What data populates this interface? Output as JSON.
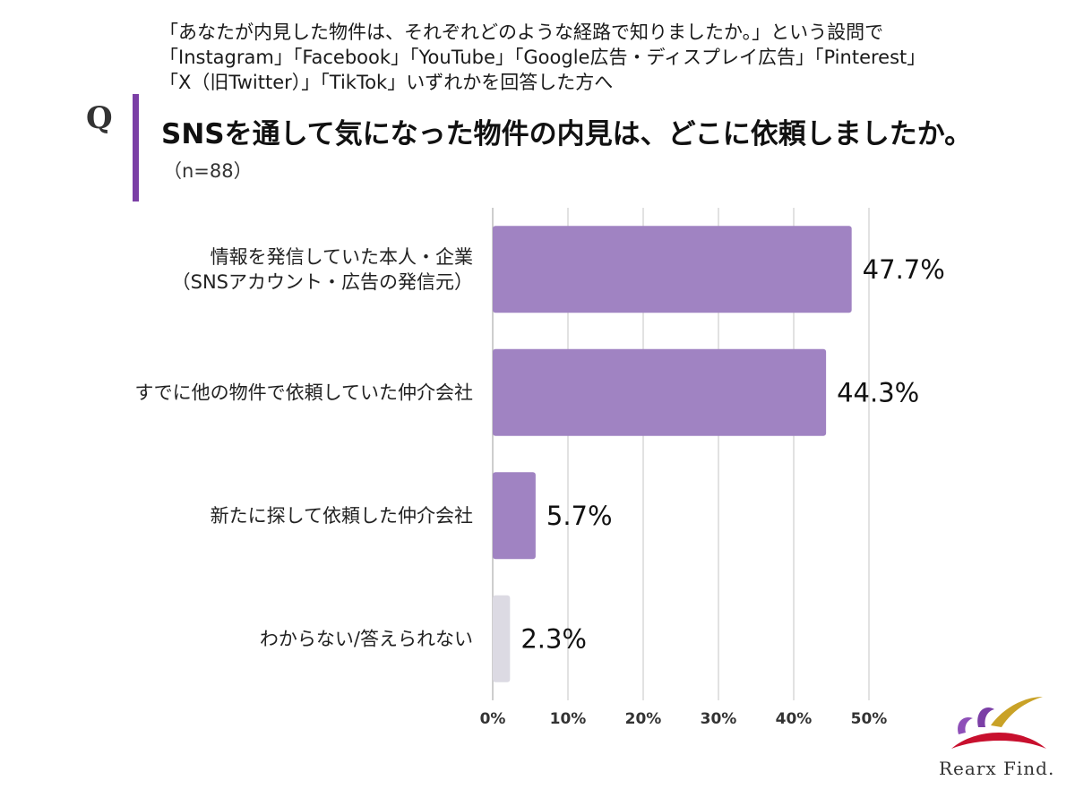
{
  "header": {
    "preamble_lines": [
      "「あなたが内見した物件は、それぞれどのような経路で知りましたか。」という設問で",
      "「Instagram」「Facebook」「YouTube」「Google広告・ディスプレイ広告」「Pinterest」",
      "「X（旧Twitter）」「TikTok」いずれかを回答した方へ"
    ],
    "q_marker": "Q",
    "question": "SNSを通して気になった物件の内見は、どこに依頼しましたか。",
    "sample_size": "（n=88）"
  },
  "colors": {
    "accent": "#7b3fa6",
    "bar": "#a083c2",
    "bar_muted": "#dcdae3",
    "grid": "#d9d9d9"
  },
  "chart_data": {
    "type": "bar",
    "orientation": "horizontal",
    "categories": [
      [
        "情報を発信していた本人・企業",
        "（SNSアカウント・広告の発信元）"
      ],
      [
        "すでに他の物件で依頼していた仲介会社"
      ],
      [
        "新たに探して依頼した仲介会社"
      ],
      [
        "わからない/答えられない"
      ]
    ],
    "values": [
      47.7,
      44.3,
      5.7,
      2.3
    ],
    "value_labels": [
      "47.7%",
      "44.3%",
      "5.7%",
      "2.3%"
    ],
    "xlim": [
      0,
      50
    ],
    "ticks": [
      0,
      10,
      20,
      30,
      40,
      50
    ],
    "tick_labels": [
      "0%",
      "10%",
      "20%",
      "30%",
      "40%",
      "50%"
    ],
    "grid": true,
    "legend": "none"
  },
  "logo": {
    "text": "Rearx Find."
  }
}
